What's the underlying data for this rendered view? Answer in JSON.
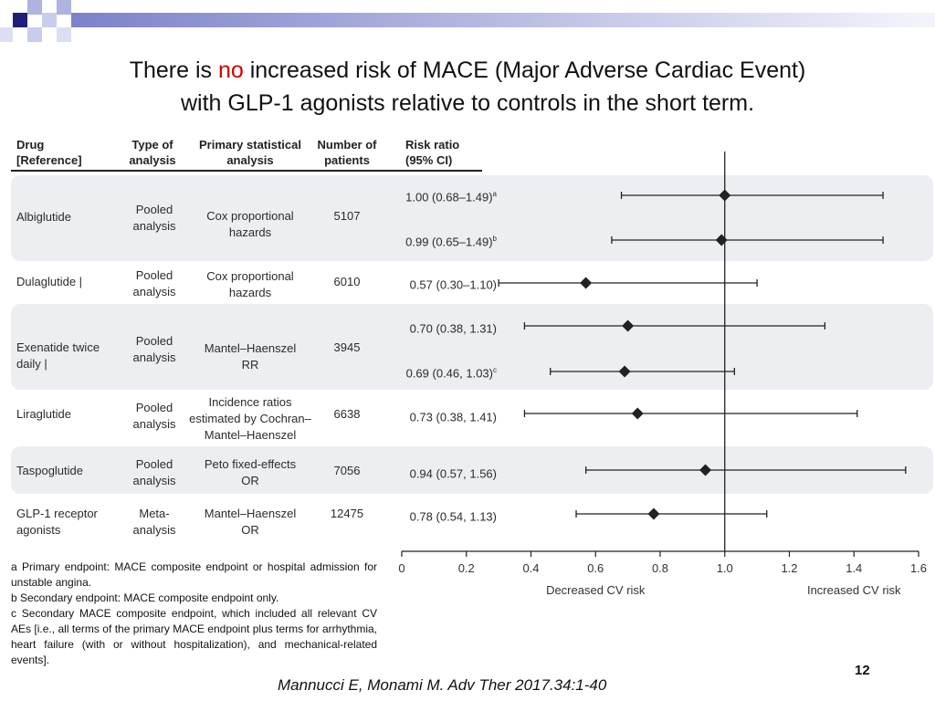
{
  "title": {
    "line1_before": "There is ",
    "line1_emph": "no",
    "line1_after": " increased risk of MACE (Major Adverse Cardiac Event)",
    "line2": "with GLP-1 agonists relative to controls in the short term."
  },
  "table": {
    "headers": {
      "drug_1": "Drug",
      "drug_2": "[Reference]",
      "type_1": "Type of",
      "type_2": "analysis",
      "stat_1": "Primary statistical",
      "stat_2": "analysis",
      "num_1": "Number of",
      "num_2": "patients",
      "rr_1": "Risk ratio",
      "rr_2": "(95% CI)"
    },
    "rows": [
      {
        "drug": [
          "Albiglutide"
        ],
        "analysis": [
          "Pooled",
          "analysis"
        ],
        "method": [
          "Cox proportional",
          "hazards"
        ],
        "patients": "5107"
      },
      {
        "drug": [
          "Dulaglutide |"
        ],
        "analysis": [
          "Pooled",
          "analysis"
        ],
        "method": [
          "Cox proportional",
          "hazards"
        ],
        "patients": "6010"
      },
      {
        "drug": [
          "Exenatide twice",
          "daily |"
        ],
        "analysis": [
          "Pooled",
          "analysis"
        ],
        "method": [
          "Mantel–Haenszel",
          "RR"
        ],
        "patients": "3945"
      },
      {
        "drug": [
          "Liraglutide"
        ],
        "analysis": [
          "Pooled",
          "analysis"
        ],
        "method": [
          "Incidence ratios",
          "estimated by Cochran–",
          "Mantel–Haenszel"
        ],
        "patients": "6638"
      },
      {
        "drug": [
          "Taspoglutide"
        ],
        "analysis": [
          "Pooled",
          "analysis"
        ],
        "method": [
          "Peto fixed-effects",
          "OR"
        ],
        "patients": "7056"
      },
      {
        "drug": [
          "GLP-1 receptor",
          "agonists"
        ],
        "analysis": [
          "Meta-",
          "analysis"
        ],
        "method": [
          "Mantel–Haenszel",
          "OR"
        ],
        "patients": "12475"
      }
    ]
  },
  "chart_data": {
    "type": "forest",
    "xlabel_left": "Decreased CV risk",
    "xlabel_right": "Increased CV risk",
    "xlim": [
      0,
      1.6
    ],
    "xticks": [
      "0",
      "0.2",
      "0.4",
      "0.6",
      "0.8",
      "1.0",
      "1.2",
      "1.4",
      "1.6"
    ],
    "reference_line": 1.0,
    "estimates": [
      {
        "drug": "Albiglutide",
        "label": "1.00 (0.68–1.49)",
        "sup": "a",
        "point": 1.0,
        "lower": 0.68,
        "upper": 1.49
      },
      {
        "drug": "Albiglutide",
        "label": "0.99 (0.65–1.49)",
        "sup": "b",
        "point": 0.99,
        "lower": 0.65,
        "upper": 1.49
      },
      {
        "drug": "Dulaglutide",
        "label": "0.57 (0.30–1.10)",
        "sup": "",
        "point": 0.57,
        "lower": 0.3,
        "upper": 1.1
      },
      {
        "drug": "Exenatide twice daily",
        "label": "0.70 (0.38, 1.31)",
        "sup": "",
        "point": 0.7,
        "lower": 0.38,
        "upper": 1.31
      },
      {
        "drug": "Exenatide twice daily",
        "label": "0.69 (0.46, 1.03)",
        "sup": "c",
        "point": 0.69,
        "lower": 0.46,
        "upper": 1.03
      },
      {
        "drug": "Liraglutide",
        "label": "0.73 (0.38, 1.41)",
        "sup": "",
        "point": 0.73,
        "lower": 0.38,
        "upper": 1.41
      },
      {
        "drug": "Taspoglutide",
        "label": "0.94 (0.57, 1.56)",
        "sup": "",
        "point": 0.94,
        "lower": 0.57,
        "upper": 1.56
      },
      {
        "drug": "GLP-1 receptor agonists",
        "label": "0.78 (0.54, 1.13)",
        "sup": "",
        "point": 0.78,
        "lower": 0.54,
        "upper": 1.13
      }
    ]
  },
  "footnotes": [
    "a Primary endpoint: MACE composite endpoint or hospital admission for unstable angina.",
    "b Secondary endpoint: MACE composite endpoint only.",
    "c Secondary MACE composite endpoint, which included all relevant CV AEs [i.e., all terms of the primary MACE endpoint plus terms for arrhythmia, heart failure (with or without hospitalization), and mechanical-related events]."
  ],
  "page_number": "12",
  "citation": "Mannucci E, Monami M. Adv Ther 2017.34:1-40",
  "colors": {
    "accent": "#d00000",
    "deco_navy": "#1f1f7a",
    "deco_lavender": "#aeb3e0",
    "band": "#eceef2",
    "ink": "#222222"
  }
}
